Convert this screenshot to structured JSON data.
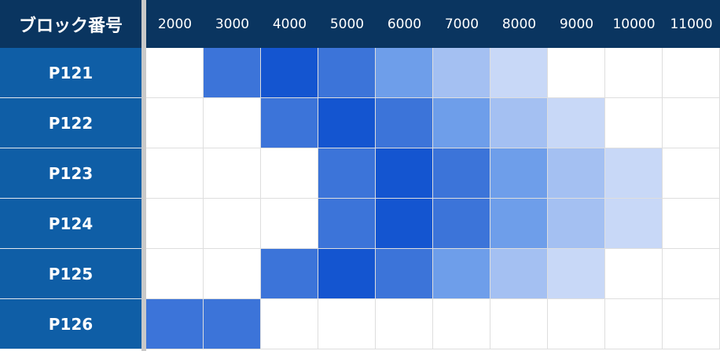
{
  "corner_label": "ブロック番号",
  "colors": {
    "header_bg": "#0a3560",
    "row_header_bg": "#0f5ea6",
    "divider": "#c9c9c9",
    "cell_empty": "#ffffff",
    "levels": [
      "#ffffff",
      "#c8d8f7",
      "#a4c0f2",
      "#6e9eea",
      "#3c74d9",
      "#1455d0"
    ]
  },
  "chart_data": {
    "type": "heatmap",
    "x_categories": [
      "2000",
      "3000",
      "4000",
      "5000",
      "6000",
      "7000",
      "8000",
      "9000",
      "10000",
      "11000"
    ],
    "y_categories": [
      "P121",
      "P122",
      "P123",
      "P124",
      "P125",
      "P126"
    ],
    "values": [
      [
        0,
        4,
        5,
        4,
        3,
        2,
        1,
        0,
        0,
        0
      ],
      [
        0,
        0,
        4,
        5,
        4,
        3,
        2,
        1,
        0,
        0
      ],
      [
        0,
        0,
        0,
        4,
        5,
        4,
        3,
        2,
        1,
        0
      ],
      [
        0,
        0,
        0,
        4,
        5,
        4,
        3,
        2,
        1,
        0
      ],
      [
        0,
        0,
        4,
        5,
        4,
        3,
        2,
        1,
        0,
        0
      ],
      [
        4,
        4,
        0,
        0,
        0,
        0,
        0,
        0,
        0,
        0
      ]
    ]
  }
}
